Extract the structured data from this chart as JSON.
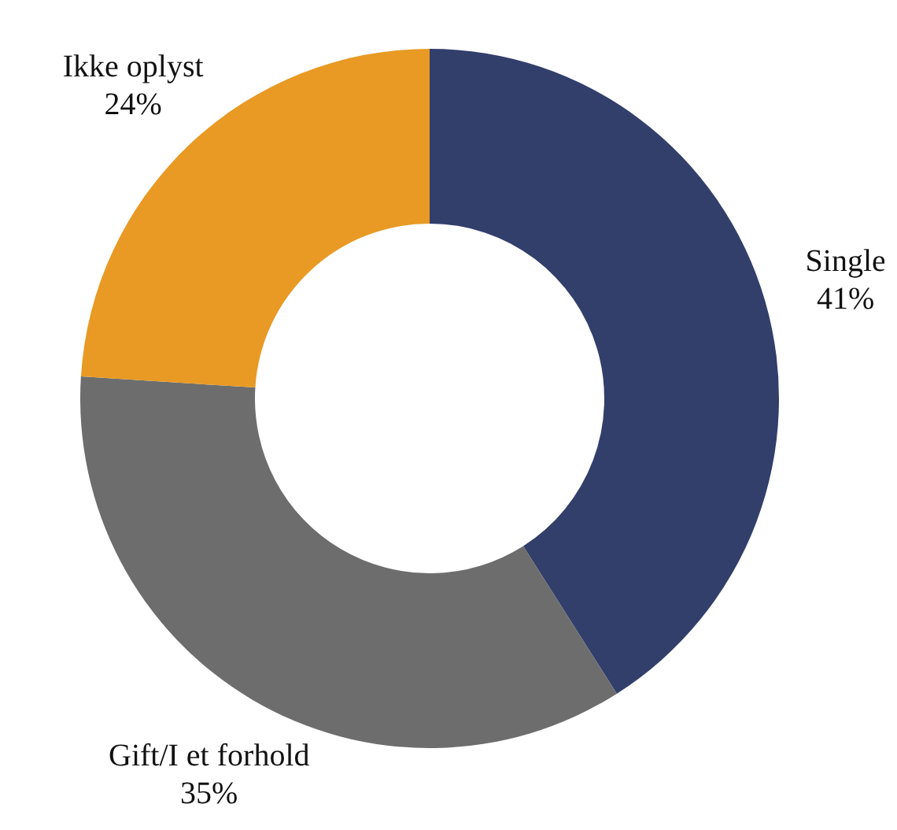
{
  "chart_data": {
    "type": "donut",
    "categories": [
      "Single",
      "Gift/I et forhold",
      "Ikke oplyst"
    ],
    "values": [
      41,
      35,
      24
    ],
    "value_labels": [
      "41%",
      "35%",
      "24%"
    ],
    "colors": [
      "#323f6b",
      "#6d6d6d",
      "#e89a24"
    ]
  }
}
